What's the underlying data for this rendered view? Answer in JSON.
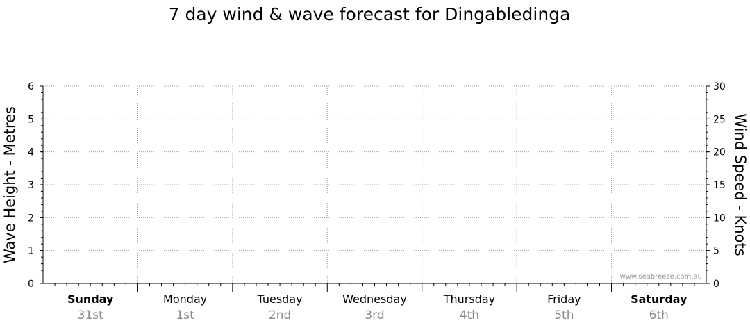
{
  "title": "7 day wind & wave forecast for Dingabledinga",
  "watermark": "www.seabreeze.com.au",
  "chart_data": {
    "type": "line",
    "title": "7 day wind & wave forecast for Dingabledinga",
    "left_axis": {
      "label": "Wave Height - Metres",
      "range": [
        0,
        6
      ],
      "ticks": [
        "0",
        "1",
        "2",
        "3",
        "4",
        "5",
        "6"
      ]
    },
    "right_axis": {
      "label": "Wind Speed - Knots",
      "range": [
        0,
        30
      ],
      "ticks": [
        "0",
        "5",
        "10",
        "15",
        "20",
        "25",
        "30"
      ]
    },
    "days": [
      {
        "name": "Sunday",
        "date": "31st",
        "bold": true
      },
      {
        "name": "Monday",
        "date": "1st",
        "bold": false
      },
      {
        "name": "Tuesday",
        "date": "2nd",
        "bold": false
      },
      {
        "name": "Wednesday",
        "date": "3rd",
        "bold": false
      },
      {
        "name": "Thursday",
        "date": "4th",
        "bold": false
      },
      {
        "name": "Friday",
        "date": "5th",
        "bold": false
      },
      {
        "name": "Saturday",
        "date": "6th",
        "bold": true
      }
    ],
    "series": [],
    "grid": true,
    "colors": {
      "grid": "#a0a0a0",
      "axis": "#000000",
      "date_text": "#8a8a8a"
    }
  }
}
